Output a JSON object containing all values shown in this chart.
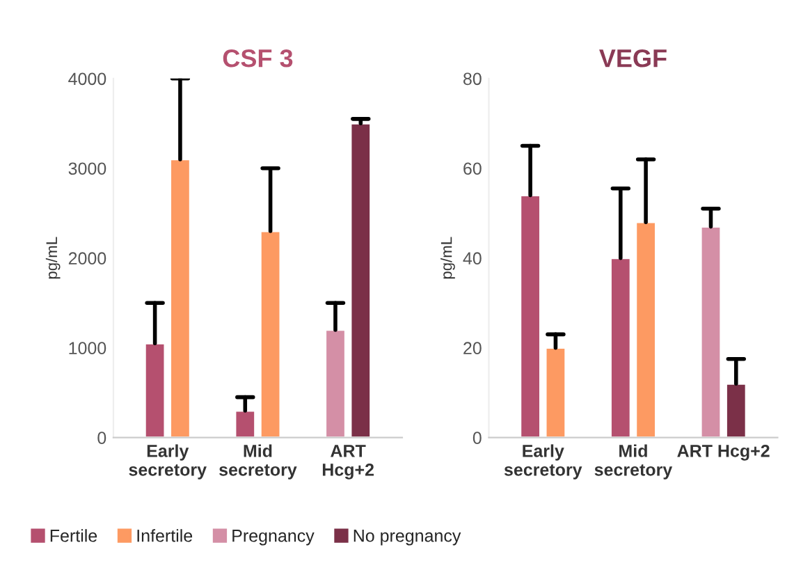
{
  "chart_data": [
    {
      "type": "bar",
      "title": "CSF 3",
      "ylabel": "pg/mL",
      "categories": [
        "Early\nsecretory",
        "Mid\nsecretory",
        "ART\nHcg+2"
      ],
      "ylim": [
        0,
        4000
      ],
      "yticks": [
        0,
        1000,
        2000,
        3000,
        4000
      ],
      "legend": "bottom",
      "series": [
        {
          "name": "Fertile",
          "color": "#b5506f",
          "values": [
            1050,
            300,
            null
          ],
          "errors": [
            [
              1050,
              1500
            ],
            [
              300,
              450
            ],
            null
          ]
        },
        {
          "name": "Infertile",
          "color": "#fd9a62",
          "values": [
            3100,
            2300,
            null
          ],
          "errors": [
            [
              3100,
              4000
            ],
            [
              2300,
              3000
            ],
            null
          ]
        },
        {
          "name": "Pregnancy",
          "color": "#d48fa6",
          "values": [
            null,
            null,
            1200
          ],
          "errors": [
            null,
            null,
            [
              1200,
              1500
            ]
          ]
        },
        {
          "name": "No pregnancy",
          "color": "#7b3048",
          "values": [
            null,
            null,
            3500
          ],
          "errors": [
            null,
            null,
            [
              3500,
              3550
            ]
          ]
        }
      ]
    },
    {
      "type": "bar",
      "title": "VEGF",
      "ylabel": "pg/mL",
      "categories": [
        "Early\nsecretory",
        "Mid\nsecretory",
        "ART Hcg+2"
      ],
      "ylim": [
        0,
        80
      ],
      "yticks": [
        0,
        20,
        40,
        60,
        80
      ],
      "series": [
        {
          "color": "#b5506f",
          "values": [
            54,
            40,
            null
          ],
          "errors": [
            [
              54,
              65
            ],
            [
              40,
              55.5
            ],
            null
          ]
        },
        {
          "color": "#fd9a62",
          "values": [
            20,
            48,
            null
          ],
          "errors": [
            [
              20,
              23
            ],
            [
              48,
              62
            ],
            null
          ]
        },
        {
          "color": "#d48fa6",
          "values": [
            null,
            null,
            47
          ],
          "errors": [
            null,
            null,
            [
              47,
              51
            ]
          ]
        },
        {
          "color": "#7b3048",
          "values": [
            null,
            null,
            12
          ],
          "errors": [
            null,
            null,
            [
              12,
              17.5
            ]
          ]
        }
      ]
    }
  ]
}
